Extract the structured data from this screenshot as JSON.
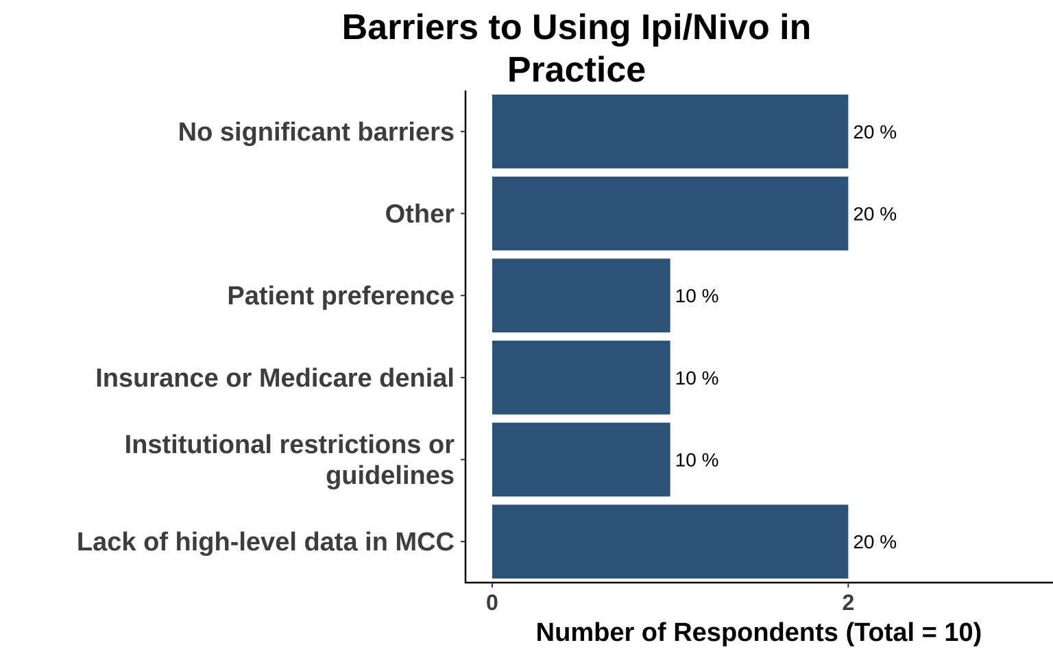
{
  "chart_data": {
    "type": "bar",
    "orientation": "horizontal",
    "title_lines": [
      "Barriers to Using Ipi/Nivo in",
      "Practice"
    ],
    "categories": [
      "No significant barriers",
      "Other",
      "Patient preference",
      "Insurance or Medicare denial",
      "Institutional restrictions or guidelines",
      "Lack of high-level data in MCC"
    ],
    "category_lines": [
      [
        "No significant barriers"
      ],
      [
        "Other"
      ],
      [
        "Patient preference"
      ],
      [
        "Insurance or Medicare denial"
      ],
      [
        "Institutional restrictions or",
        "guidelines"
      ],
      [
        "Lack of high-level data in MCC"
      ]
    ],
    "values": [
      2,
      2,
      1,
      1,
      1,
      2
    ],
    "data_labels": [
      "20 %",
      "20 %",
      "10 %",
      "10 %",
      "10 %",
      "20 %"
    ],
    "xlabel": "Number of Respondents (Total = 10)",
    "ylabel": "",
    "xticks": [
      0,
      2
    ],
    "xtick_labels": [
      "0",
      "2"
    ],
    "xlim": [
      -0.15,
      3.15
    ],
    "bar_color": "#2c5277",
    "grid": false,
    "legend": "none"
  }
}
